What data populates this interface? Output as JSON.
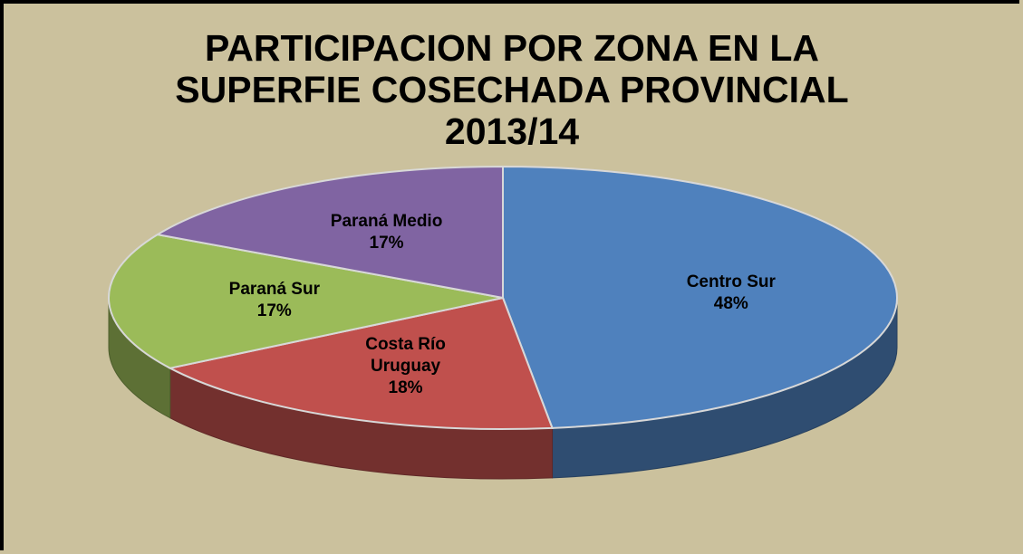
{
  "chart_data": {
    "type": "pie",
    "title": "PARTICIPACION POR ZONA EN LA SUPERFIE COSECHADA PROVINCIAL 2013/14",
    "categories": [
      "Centro Sur",
      "Costa Río Uruguay",
      "Paraná Sur",
      "Paraná Medio"
    ],
    "values": [
      48,
      18,
      17,
      17
    ],
    "value_labels": [
      "48%",
      "18%",
      "17%",
      "17%"
    ],
    "colors": [
      "#4f81bd",
      "#c0504d",
      "#9bbb59",
      "#8064a2"
    ]
  }
}
